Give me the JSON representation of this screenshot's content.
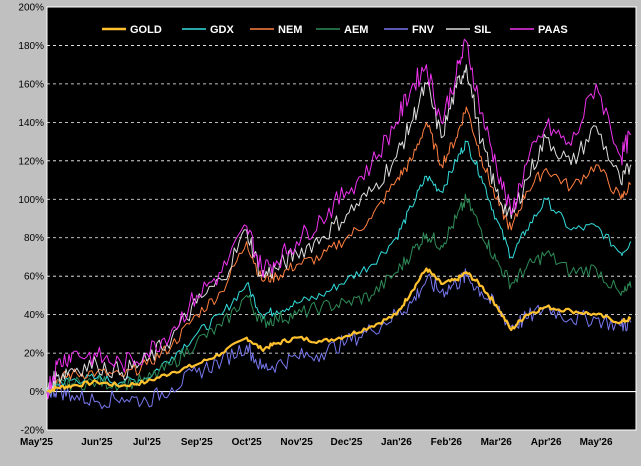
{
  "chart_data": {
    "type": "line",
    "title": "",
    "xlabel": "",
    "ylabel": "",
    "ylim": [
      -20,
      200
    ],
    "y_ticks": [
      -20,
      0,
      20,
      40,
      60,
      80,
      100,
      120,
      140,
      160,
      180,
      200
    ],
    "y_tick_labels": [
      "-20%",
      "0%",
      "20%",
      "40%",
      "60%",
      "80%",
      "100%",
      "120%",
      "140%",
      "160%",
      "180%",
      "200%"
    ],
    "x_range": [
      0,
      11.8
    ],
    "x_ticks": [
      0,
      1,
      2,
      3,
      4,
      5,
      6,
      7,
      8,
      9,
      10,
      11
    ],
    "x_tick_labels": [
      "May'25",
      "Jun'25",
      "Jul'25",
      "Sep'25",
      "Oct'25",
      "Nov'25",
      "Dec'25",
      "Jan'26",
      "Feb'26",
      "Mar'26",
      "Apr'26",
      "May'26"
    ],
    "grid": true,
    "legend_position": "top",
    "background": "#000000",
    "frame_background": "#c0c0c0",
    "grid_color": "#ffffff",
    "series": [
      {
        "name": "GOLD",
        "color": "#ffc22e",
        "width": 2.2,
        "x": [
          0,
          0.2,
          0.5,
          1.0,
          1.5,
          2.0,
          2.5,
          3.0,
          3.5,
          4.0,
          4.3,
          4.6,
          5.0,
          5.5,
          6.0,
          6.5,
          7.0,
          7.3,
          7.6,
          7.9,
          8.2,
          8.4,
          8.7,
          9.0,
          9.3,
          9.6,
          10.0,
          10.5,
          11.0,
          11.5,
          11.7
        ],
        "values": [
          0,
          2,
          3,
          5,
          3,
          5,
          10,
          14,
          20,
          28,
          22,
          25,
          28,
          26,
          29,
          34,
          40,
          52,
          64,
          56,
          58,
          62,
          55,
          45,
          32,
          40,
          44,
          42,
          40,
          36,
          38
        ]
      },
      {
        "name": "GDX",
        "color": "#33dddd",
        "width": 1,
        "x": [
          0,
          0.2,
          0.5,
          1.0,
          1.5,
          2.0,
          2.5,
          3.0,
          3.5,
          4.0,
          4.3,
          4.6,
          5.0,
          5.5,
          6.0,
          6.5,
          7.0,
          7.3,
          7.6,
          7.9,
          8.2,
          8.4,
          8.7,
          9.0,
          9.3,
          9.6,
          10.0,
          10.5,
          11.0,
          11.5,
          11.7
        ],
        "values": [
          0,
          4,
          6,
          7,
          5,
          7,
          18,
          30,
          40,
          56,
          40,
          42,
          46,
          50,
          58,
          66,
          80,
          96,
          112,
          104,
          120,
          130,
          112,
          90,
          70,
          84,
          100,
          84,
          86,
          72,
          78
        ]
      },
      {
        "name": "NEM",
        "color": "#ff7f40",
        "width": 1,
        "x": [
          0,
          0.2,
          0.5,
          1.0,
          1.5,
          2.0,
          2.5,
          3.0,
          3.5,
          4.0,
          4.3,
          4.6,
          5.0,
          5.5,
          6.0,
          6.5,
          7.0,
          7.3,
          7.6,
          7.9,
          8.2,
          8.4,
          8.7,
          9.0,
          9.3,
          9.6,
          10.0,
          10.5,
          11.0,
          11.5,
          11.7
        ],
        "values": [
          0,
          6,
          9,
          10,
          8,
          14,
          24,
          40,
          52,
          78,
          58,
          60,
          66,
          70,
          80,
          90,
          110,
          120,
          140,
          118,
          132,
          148,
          122,
          100,
          84,
          104,
          116,
          106,
          118,
          100,
          108
        ]
      },
      {
        "name": "AEM",
        "color": "#2e8b57",
        "width": 1,
        "x": [
          0,
          0.2,
          0.5,
          1.0,
          1.5,
          2.0,
          2.5,
          3.0,
          3.5,
          4.0,
          4.3,
          4.6,
          5.0,
          5.5,
          6.0,
          6.5,
          7.0,
          7.3,
          7.6,
          7.9,
          8.2,
          8.4,
          8.7,
          9.0,
          9.3,
          9.6,
          10.0,
          10.5,
          11.0,
          11.5,
          11.7
        ],
        "values": [
          0,
          3,
          4,
          5,
          4,
          6,
          14,
          26,
          34,
          50,
          36,
          38,
          40,
          44,
          46,
          50,
          62,
          72,
          82,
          76,
          90,
          100,
          84,
          68,
          56,
          64,
          72,
          62,
          64,
          50,
          54
        ]
      },
      {
        "name": "FNV",
        "color": "#7777ee",
        "width": 1,
        "x": [
          0,
          0.2,
          0.5,
          1.0,
          1.5,
          2.0,
          2.5,
          3.0,
          3.5,
          4.0,
          4.3,
          4.6,
          5.0,
          5.5,
          6.0,
          6.5,
          7.0,
          7.3,
          7.6,
          7.9,
          8.2,
          8.4,
          8.7,
          9.0,
          9.3,
          9.6,
          10.0,
          10.5,
          11.0,
          11.5,
          11.7
        ],
        "values": [
          0,
          1,
          -2,
          -5,
          -3,
          -5,
          2,
          10,
          16,
          24,
          12,
          14,
          18,
          20,
          26,
          32,
          40,
          46,
          58,
          52,
          56,
          60,
          52,
          44,
          34,
          38,
          44,
          38,
          38,
          34,
          36
        ]
      },
      {
        "name": "SIL",
        "color": "#dddddd",
        "width": 1,
        "x": [
          0,
          0.2,
          0.5,
          1.0,
          1.5,
          2.0,
          2.5,
          3.0,
          3.5,
          4.0,
          4.3,
          4.6,
          5.0,
          5.5,
          6.0,
          6.5,
          7.0,
          7.3,
          7.6,
          7.9,
          8.2,
          8.4,
          8.7,
          9.0,
          9.3,
          9.6,
          10.0,
          10.5,
          11.0,
          11.5,
          11.7
        ],
        "values": [
          0,
          8,
          12,
          14,
          10,
          16,
          28,
          46,
          58,
          84,
          60,
          64,
          72,
          80,
          92,
          104,
          122,
          140,
          160,
          132,
          158,
          170,
          130,
          104,
          90,
          110,
          132,
          118,
          138,
          108,
          118
        ]
      },
      {
        "name": "PAAS",
        "color": "#ee33ee",
        "width": 1,
        "x": [
          0,
          0.2,
          0.5,
          1.0,
          1.5,
          2.0,
          2.5,
          3.0,
          3.5,
          4.0,
          4.3,
          4.6,
          5.0,
          5.5,
          6.0,
          6.5,
          7.0,
          7.3,
          7.6,
          7.9,
          8.2,
          8.4,
          8.7,
          9.0,
          9.3,
          9.6,
          10.0,
          10.5,
          11.0,
          11.5,
          11.7
        ],
        "values": [
          0,
          14,
          20,
          18,
          14,
          20,
          32,
          50,
          62,
          86,
          64,
          68,
          78,
          90,
          104,
          118,
          140,
          158,
          170,
          140,
          165,
          182,
          145,
          118,
          92,
          118,
          138,
          128,
          160,
          122,
          134
        ]
      }
    ]
  }
}
